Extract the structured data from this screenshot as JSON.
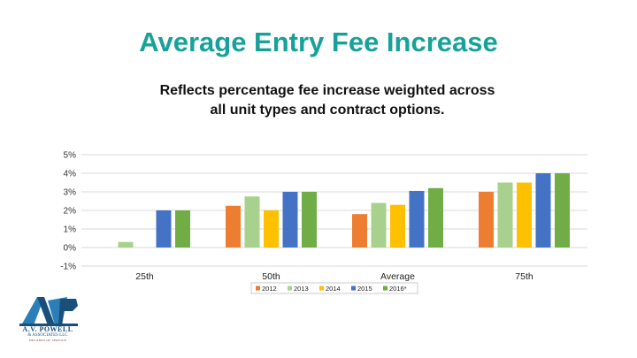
{
  "page": {
    "title": "Average Entry Fee Increase",
    "subtitle_line1": "Reflects percentage fee increase weighted across",
    "subtitle_line2": "all unit types and contract options."
  },
  "chart_data": {
    "type": "bar",
    "title": "",
    "xlabel": "",
    "ylabel": "",
    "categories": [
      "25th",
      "50th",
      "Average",
      "75th"
    ],
    "series": [
      {
        "name": "2012",
        "color": "#ed7d31",
        "values": [
          0.0,
          2.25,
          1.8,
          3.0
        ]
      },
      {
        "name": "2013",
        "color": "#a9d18e",
        "values": [
          0.3,
          2.75,
          2.4,
          3.5
        ]
      },
      {
        "name": "2014",
        "color": "#ffc000",
        "values": [
          0.0,
          2.0,
          2.3,
          3.5
        ]
      },
      {
        "name": "2015",
        "color": "#4472c4",
        "values": [
          2.0,
          3.0,
          3.05,
          4.0
        ]
      },
      {
        "name": "2016*",
        "color": "#70ad47",
        "values": [
          2.0,
          3.0,
          3.2,
          4.0
        ]
      }
    ],
    "ylim": [
      -1,
      5
    ],
    "yticks": [
      -1,
      0,
      1,
      2,
      3,
      4,
      5
    ],
    "ytick_labels": [
      "-1%",
      "0%",
      "1%",
      "2%",
      "3%",
      "4%",
      "5%"
    ],
    "grid": true,
    "legend_position": "bottom"
  },
  "logo": {
    "name": "A.V. POWELL",
    "sub": "& ASSOCIATES LLC",
    "tag": "DECADES OF SERVICE"
  }
}
